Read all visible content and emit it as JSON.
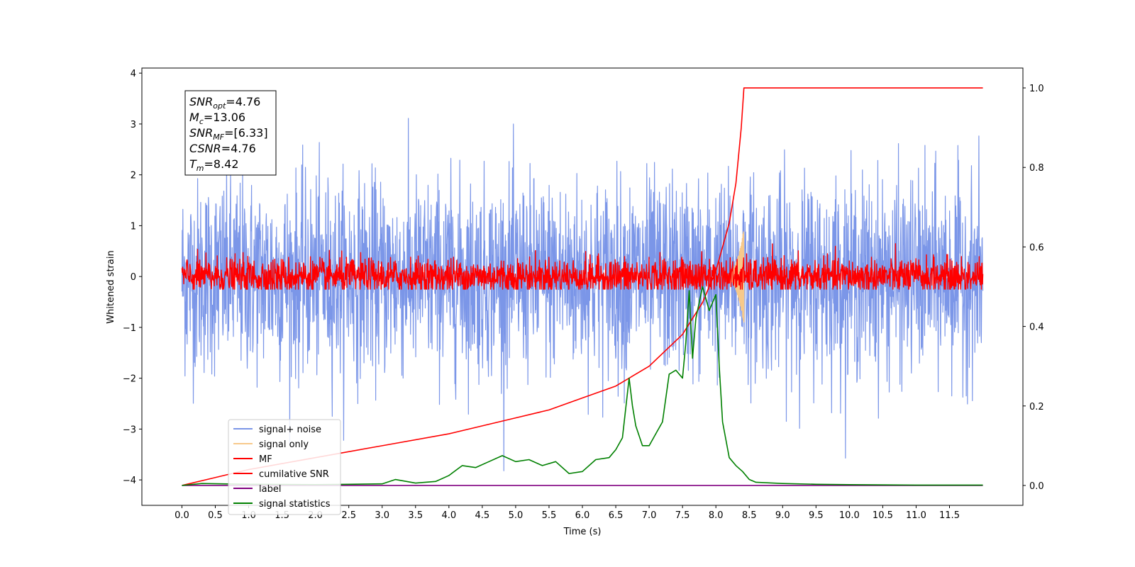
{
  "chart_data": {
    "type": "line",
    "xlabel": "Time (s)",
    "ylabel": "Whitened strain",
    "xlim": [
      -0.6,
      12.6
    ],
    "ylim": [
      -4.5,
      4.1
    ],
    "y2lim": [
      -0.05,
      1.05
    ],
    "x_ticks": [
      "0.0",
      "0.5",
      "1.0",
      "1.5",
      "2.0",
      "2.5",
      "3.0",
      "3.5",
      "4.0",
      "4.5",
      "5.0",
      "5.5",
      "6.0",
      "6.5",
      "7.0",
      "7.5",
      "8.0",
      "8.5",
      "9.0",
      "9.5",
      "10.0",
      "10.5",
      "11.0",
      "11.5"
    ],
    "y_ticks": [
      "4",
      "3",
      "2",
      "1",
      "0",
      "−1",
      "−2",
      "−3",
      "−4"
    ],
    "y2_ticks": [
      "1.0",
      "0.8",
      "0.6",
      "0.4",
      "0.2",
      "0.0"
    ],
    "grid": false,
    "legend_position": "lower-left",
    "annotation": {
      "lines": [
        {
          "main": "SNR",
          "sub": "opt",
          "value": "=4.76"
        },
        {
          "main": "M",
          "sub": "c",
          "value": "=13.06"
        },
        {
          "main": "SNR",
          "sub": "MF",
          "value": "=[6.33]"
        },
        {
          "main": "CSNR",
          "sub": "",
          "value": "=4.76"
        },
        {
          "main": "T",
          "sub": "m",
          "value": "=8.42"
        }
      ]
    },
    "series": [
      {
        "name": "signal+ noise",
        "color": "#7b96e8",
        "axis": "left",
        "kind": "noise",
        "amplitude": 0.95,
        "extreme_max": 3.7,
        "extreme_min": -4.15,
        "x_range": [
          0.0,
          12.0
        ]
      },
      {
        "name": "signal only",
        "color": "#f7c98a",
        "axis": "left",
        "kind": "chirp",
        "peak_time": 8.42,
        "peak_amplitude": 0.95
      },
      {
        "name": "MF",
        "color": "#ff0000",
        "axis": "left",
        "kind": "noise",
        "amplitude": 0.18,
        "extreme_max": 1.0,
        "extreme_min": -0.25,
        "x_range": [
          0.0,
          12.0
        ]
      },
      {
        "name": "cumilative SNR",
        "color": "#ff0000",
        "axis": "right",
        "x": [
          0.0,
          0.5,
          1.0,
          2.0,
          3.0,
          4.0,
          5.0,
          5.5,
          6.0,
          6.5,
          7.0,
          7.5,
          7.8,
          8.0,
          8.2,
          8.3,
          8.38,
          8.42,
          12.0
        ],
        "values": [
          0.0,
          0.02,
          0.04,
          0.07,
          0.1,
          0.13,
          0.17,
          0.19,
          0.22,
          0.25,
          0.3,
          0.38,
          0.46,
          0.54,
          0.66,
          0.76,
          0.9,
          1.0,
          1.0
        ]
      },
      {
        "name": "label",
        "color": "#800080",
        "axis": "right",
        "x": [
          0.0,
          12.0
        ],
        "values": [
          0.0,
          0.0
        ]
      },
      {
        "name": "signal statistics",
        "color": "#008000",
        "axis": "right",
        "x": [
          0.0,
          0.3,
          1.0,
          2.0,
          2.5,
          3.0,
          3.2,
          3.5,
          3.8,
          4.0,
          4.2,
          4.4,
          4.6,
          4.8,
          5.0,
          5.2,
          5.4,
          5.6,
          5.8,
          6.0,
          6.2,
          6.4,
          6.5,
          6.6,
          6.7,
          6.75,
          6.8,
          6.9,
          7.0,
          7.1,
          7.2,
          7.3,
          7.4,
          7.5,
          7.55,
          7.6,
          7.65,
          7.7,
          7.8,
          7.9,
          8.0,
          8.05,
          8.1,
          8.2,
          8.3,
          8.4,
          8.5,
          8.6,
          9.0,
          9.5,
          10.0,
          11.0,
          12.0
        ],
        "values": [
          0.0,
          0.005,
          0.003,
          0.002,
          0.003,
          0.004,
          0.015,
          0.006,
          0.01,
          0.025,
          0.05,
          0.045,
          0.06,
          0.075,
          0.06,
          0.065,
          0.05,
          0.06,
          0.03,
          0.035,
          0.065,
          0.07,
          0.09,
          0.12,
          0.27,
          0.2,
          0.15,
          0.1,
          0.1,
          0.13,
          0.16,
          0.28,
          0.29,
          0.27,
          0.36,
          0.49,
          0.32,
          0.42,
          0.5,
          0.44,
          0.48,
          0.3,
          0.16,
          0.07,
          0.05,
          0.035,
          0.015,
          0.008,
          0.005,
          0.003,
          0.002,
          0.001,
          0.001
        ]
      }
    ]
  }
}
